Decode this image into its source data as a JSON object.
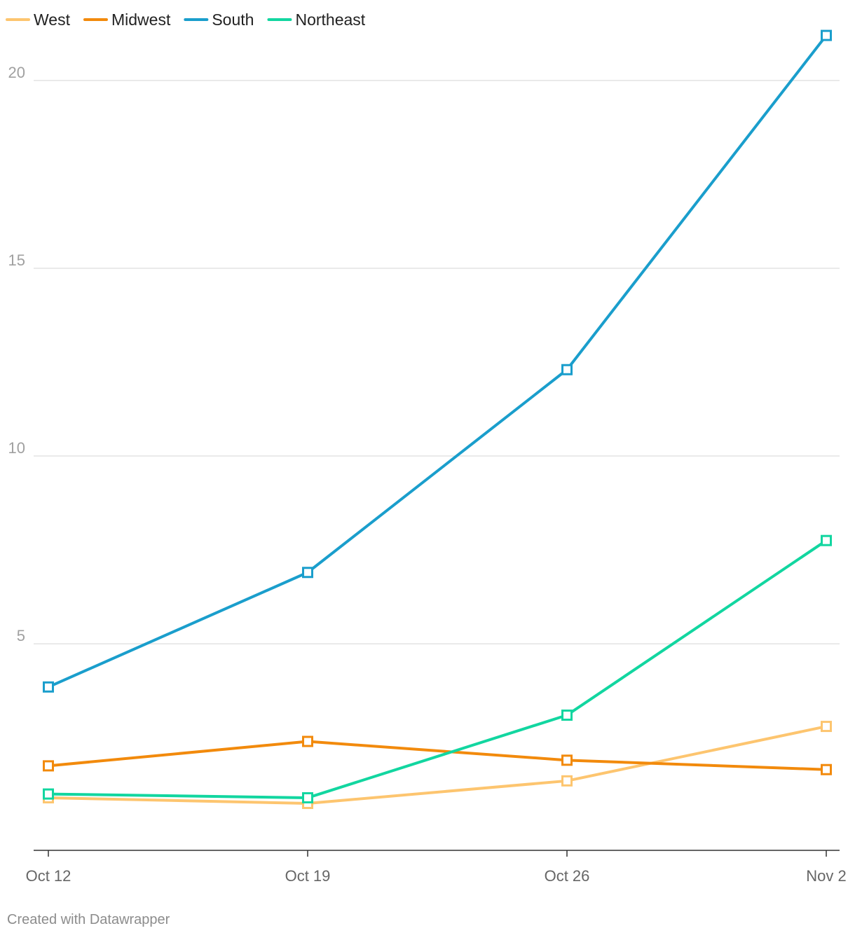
{
  "chart_data": {
    "type": "line",
    "categories": [
      "Oct 12",
      "Oct 19",
      "Oct 26",
      "Nov 2"
    ],
    "series": [
      {
        "name": "West",
        "color": "#fdc56f",
        "values": [
          0.9,
          0.75,
          1.35,
          2.8
        ]
      },
      {
        "name": "Midwest",
        "color": "#f28a0c",
        "values": [
          1.75,
          2.4,
          1.9,
          1.65
        ]
      },
      {
        "name": "South",
        "color": "#1a9ecc",
        "values": [
          3.85,
          6.9,
          12.3,
          21.2
        ]
      },
      {
        "name": "Northeast",
        "color": "#12d6a0",
        "values": [
          1.0,
          0.9,
          3.1,
          7.75
        ]
      }
    ],
    "yticks": [
      5,
      10,
      15,
      20
    ],
    "ylim": [
      -0.5,
      21.5
    ],
    "marker": "hollow-square",
    "grid": true,
    "legend_position": "top-left"
  },
  "credit": "Created with Datawrapper"
}
